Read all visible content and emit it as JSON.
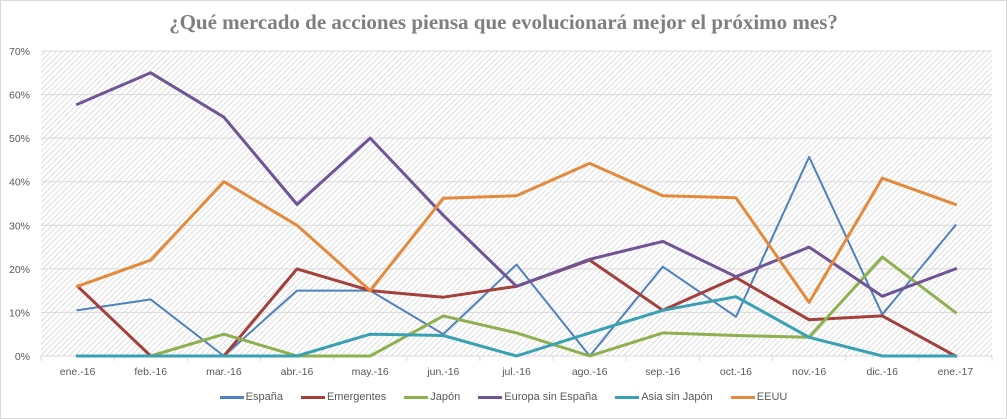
{
  "chart_data": {
    "type": "line",
    "title": "¿Qué mercado de acciones piensa que evolucionará mejor el próximo mes?",
    "xlabel": "",
    "ylabel": "",
    "categories": [
      "ene.-16",
      "feb.-16",
      "mar.-16",
      "abr.-16",
      "may.-16",
      "jun.-16",
      "jul.-16",
      "ago.-16",
      "sep.-16",
      "oct.-16",
      "nov.-16",
      "dic.-16",
      "ene.-17"
    ],
    "ylim": [
      0,
      70
    ],
    "yticks": [
      0,
      10,
      20,
      30,
      40,
      50,
      60,
      70
    ],
    "ytick_labels": [
      "0%",
      "10%",
      "20%",
      "30%",
      "40%",
      "50%",
      "60%",
      "70%"
    ],
    "grid": true,
    "legend_position": "bottom",
    "series": [
      {
        "name": "España",
        "color": "#4f81bd",
        "width": 2,
        "values": [
          10.5,
          13,
          0,
          15,
          15,
          5,
          21,
          0,
          20.5,
          9,
          45.7,
          9.5,
          30
        ]
      },
      {
        "name": "Emergentes",
        "color": "#a3403c",
        "width": 3,
        "values": [
          16,
          0,
          0,
          20,
          15,
          13.5,
          16,
          22,
          10.5,
          18,
          8.3,
          9.2,
          0
        ]
      },
      {
        "name": "Japón",
        "color": "#8fb04f",
        "width": 3,
        "values": [
          0,
          0,
          5,
          0,
          0,
          9.2,
          5.3,
          0,
          5.3,
          4.7,
          4.3,
          22.7,
          10
        ]
      },
      {
        "name": "Europa sin España",
        "color": "#6f5596",
        "width": 3,
        "values": [
          57.8,
          65,
          54.8,
          34.8,
          50,
          32.3,
          16,
          22.2,
          26.3,
          18.2,
          25,
          13.7,
          20
        ]
      },
      {
        "name": "Asia sin Japón",
        "color": "#3aa0b3",
        "width": 3,
        "values": [
          0,
          0,
          0,
          0,
          5,
          4.7,
          0,
          5.3,
          10.5,
          13.6,
          4.3,
          0,
          0
        ]
      },
      {
        "name": "EEUU",
        "color": "#e38a3d",
        "width": 3,
        "values": [
          16,
          22,
          40,
          30,
          15,
          36.2,
          36.8,
          44.2,
          36.8,
          36.3,
          12.3,
          40.8,
          34.8
        ]
      }
    ]
  }
}
